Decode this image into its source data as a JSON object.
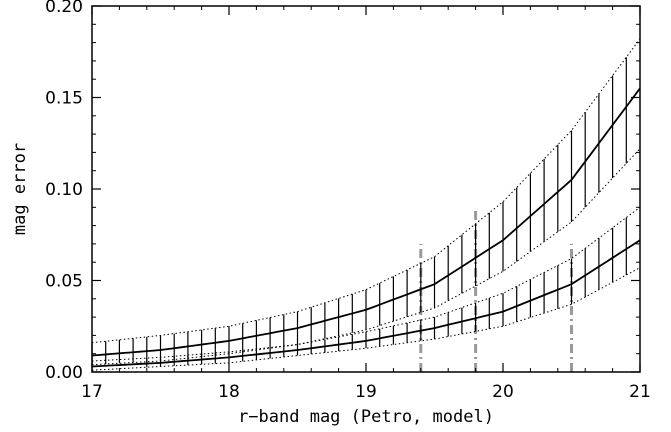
{
  "chart_data": {
    "type": "line",
    "title": "",
    "xlabel": "r−band mag (Petro, model)",
    "ylabel": "mag error",
    "xlim": [
      17,
      21
    ],
    "ylim": [
      0,
      0.2
    ],
    "x_ticks": [
      17,
      18,
      19,
      20,
      21
    ],
    "x_tick_labels": [
      "17",
      "18",
      "19",
      "20",
      "21"
    ],
    "y_ticks": [
      0,
      0.05,
      0.1,
      0.15,
      0.2
    ],
    "y_tick_labels": [
      "0.00",
      "0.05",
      "0.10",
      "0.15",
      "0.20"
    ],
    "grid": false,
    "x": [
      17.0,
      17.5,
      18.0,
      18.5,
      19.0,
      19.5,
      20.0,
      20.5,
      21.0
    ],
    "series": [
      {
        "role": "upper",
        "median": [
          0.009,
          0.012,
          0.017,
          0.024,
          0.034,
          0.048,
          0.072,
          0.105,
          0.155
        ],
        "band_low": [
          0.004,
          0.006,
          0.01,
          0.015,
          0.023,
          0.035,
          0.055,
          0.082,
          0.122
        ],
        "band_high": [
          0.016,
          0.02,
          0.025,
          0.033,
          0.045,
          0.063,
          0.093,
          0.132,
          0.182
        ],
        "bars_x": [
          17.0,
          17.1,
          17.2,
          17.3,
          17.4,
          17.5,
          17.6,
          17.7,
          17.8,
          17.9,
          18.0,
          18.1,
          18.2,
          18.3,
          18.4,
          18.5,
          18.6,
          18.7,
          18.8,
          18.9,
          19.0,
          19.1,
          19.2,
          19.3,
          19.4,
          19.5,
          19.6,
          19.7,
          19.8,
          19.9,
          20.0,
          20.1,
          20.2,
          20.3,
          20.4,
          20.5,
          20.6,
          20.7,
          20.8,
          20.9
        ]
      },
      {
        "role": "lower",
        "median": [
          0.003,
          0.005,
          0.008,
          0.012,
          0.017,
          0.024,
          0.033,
          0.048,
          0.072
        ],
        "band_low": [
          0.001,
          0.003,
          0.005,
          0.009,
          0.013,
          0.018,
          0.025,
          0.037,
          0.057
        ],
        "band_high": [
          0.006,
          0.008,
          0.011,
          0.015,
          0.022,
          0.03,
          0.043,
          0.062,
          0.09
        ],
        "bars_x": [
          17.4,
          17.5,
          17.6,
          17.7,
          17.8,
          17.9,
          18.0,
          18.1,
          18.2,
          18.3,
          18.4,
          18.5,
          18.6,
          18.7,
          18.8,
          18.9,
          19.0,
          19.1,
          19.2,
          19.3,
          19.4,
          19.5,
          19.6,
          19.7,
          19.8,
          19.9,
          20.0,
          20.1,
          20.2,
          20.3,
          20.4,
          20.5,
          20.6,
          20.7,
          20.8,
          20.9
        ]
      }
    ],
    "vlines": [
      {
        "x": 19.4,
        "ymax": 0.07
      },
      {
        "x": 19.8,
        "ymax": 0.09
      },
      {
        "x": 20.5,
        "ymax": 0.07
      }
    ],
    "colors": {
      "curve": "#000000",
      "vline": "#999999",
      "axis": "#000000"
    }
  }
}
